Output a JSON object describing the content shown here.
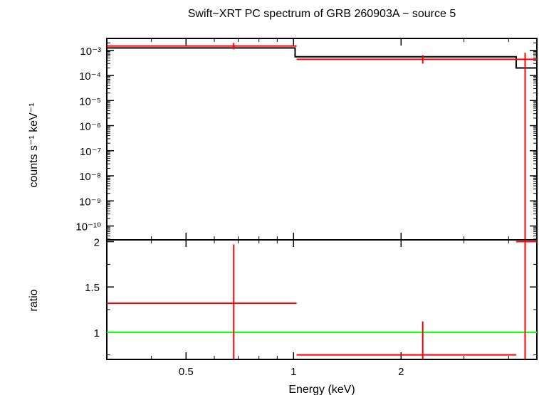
{
  "chart_data": [
    {
      "type": "line",
      "title": "Swift−XRT PC spectrum of GRB 260903A − source 5",
      "ylabel": "counts s⁻¹ keV⁻¹",
      "xscale": "log",
      "yscale": "log",
      "xlim": [
        0.3,
        4.8
      ],
      "ylim": [
        2.8e-11,
        0.003
      ],
      "y_ticks": [
        {
          "label": "10⁻³",
          "value": 0.001
        },
        {
          "label": "10⁻⁴",
          "value": 0.0001
        },
        {
          "label": "10⁻⁵",
          "value": 1e-05
        },
        {
          "label": "10⁻⁶",
          "value": 1e-06
        },
        {
          "label": "10⁻⁷",
          "value": 1e-07
        },
        {
          "label": "10⁻⁸",
          "value": 1e-08
        },
        {
          "label": "10⁻⁹",
          "value": 1e-09
        },
        {
          "label": "10⁻¹⁰",
          "value": 1e-10
        }
      ],
      "model_steps": [
        {
          "x_lo": 0.3,
          "x_hi": 1.01,
          "y": 0.00125
        },
        {
          "x_lo": 1.01,
          "x_hi": 4.2,
          "y": 0.00056
        },
        {
          "x_lo": 4.2,
          "x_hi": 4.8,
          "y": 0.0002
        }
      ],
      "data_points": [
        {
          "x": 0.68,
          "x_lo": 0.3,
          "x_hi": 1.02,
          "y": 0.0015,
          "y_lo": 0.0011,
          "y_hi": 0.002
        },
        {
          "x": 2.3,
          "x_lo": 1.02,
          "x_hi": 4.2,
          "y": 0.00044,
          "y_lo": 0.0003,
          "y_hi": 0.00065
        },
        {
          "x": 4.45,
          "x_lo": 4.2,
          "x_hi": 4.8,
          "y": 0.00044,
          "y_lo": 2.8e-11,
          "y_hi": 0.0008
        }
      ]
    },
    {
      "type": "line",
      "xlabel": "Energy (keV)",
      "ylabel": "ratio",
      "xscale": "log",
      "xlim": [
        0.3,
        4.8
      ],
      "ylim": [
        0.7,
        2.02
      ],
      "x_ticks": [
        {
          "label": "0.5",
          "value": 0.5
        },
        {
          "label": "1",
          "value": 1
        },
        {
          "label": "2",
          "value": 2
        }
      ],
      "y_ticks": [
        {
          "label": "1",
          "value": 1
        },
        {
          "label": "1.5",
          "value": 1.5
        },
        {
          "label": "2",
          "value": 2
        }
      ],
      "reference_line": {
        "y": 1,
        "color": "#00ff00"
      },
      "data_points": [
        {
          "x": 0.68,
          "x_lo": 0.3,
          "x_hi": 1.02,
          "y": 1.32,
          "y_lo": 0.7,
          "y_hi": 1.97
        },
        {
          "x": 2.3,
          "x_lo": 1.02,
          "x_hi": 4.2,
          "y": 0.75,
          "y_lo": 0.7,
          "y_hi": 1.12
        },
        {
          "x": 4.45,
          "x_lo": 4.2,
          "x_hi": 4.8,
          "y": 2.0,
          "y_lo": 0.7,
          "y_hi": 2.02
        }
      ]
    }
  ],
  "colors": {
    "data": "#ff0000",
    "model": "#000000",
    "reference": "#00ff00"
  }
}
